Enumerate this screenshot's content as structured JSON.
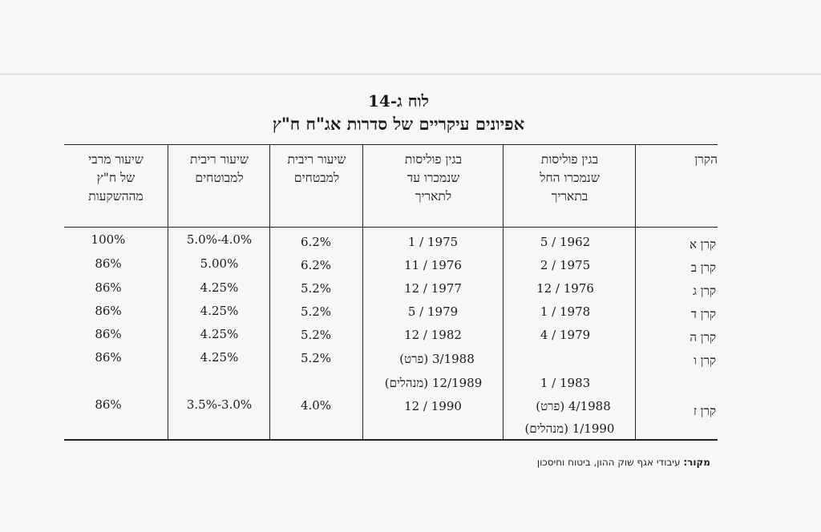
{
  "title": {
    "line1": "לוח ג-14",
    "line2": "אפיונים עיקריים של סדרות אג\"ח ח\"ץ"
  },
  "headers": {
    "fund": "הקרן",
    "from_date": [
      "בגין פוליסות",
      "שנמכרו החל",
      "בתאריך"
    ],
    "until_date": [
      "בגין פוליסות",
      "שנמכרו עד",
      "לתאריך"
    ],
    "rate1": [
      "שיעור ריבית",
      "למבטחים"
    ],
    "rate2": [
      "שיעור ריבית",
      "למבוטחים"
    ],
    "max_rate": [
      "שיעור מרבי",
      "של ח\"ץ",
      "מההשקעות"
    ]
  },
  "rows": [
    {
      "fund": "קרן א",
      "from": "5 / 1962",
      "until": "1 / 1975",
      "rate1": "6.2%",
      "rate2": "5.0%-4.0%",
      "max": "100%"
    },
    {
      "fund": "קרן ב",
      "from": "2 / 1975",
      "until": "11 / 1976",
      "rate1": "6.2%",
      "rate2": "5.00%",
      "max": "86%"
    },
    {
      "fund": "קרן ג",
      "from": "12 / 1976",
      "until": "12 / 1977",
      "rate1": "5.2%",
      "rate2": "4.25%",
      "max": "86%"
    },
    {
      "fund": "קרן ד",
      "from": "1 / 1978",
      "until": "5 / 1979",
      "rate1": "5.2%",
      "rate2": "4.25%",
      "max": "86%"
    },
    {
      "fund": "קרן ה",
      "from": "4 / 1979",
      "until": "12 / 1982",
      "rate1": "5.2%",
      "rate2": "4.25%",
      "max": "86%"
    },
    {
      "fund": "קרן ו",
      "from": "1 / 1983",
      "until_a": "3/1988 (פרט)",
      "until_b": "12/1989 (מנהלים)",
      "rate1": "5.2%",
      "rate2": "4.25%",
      "max": "86%"
    },
    {
      "fund": "קרן ז",
      "from_a": "4/1988 (פרט)",
      "from_b": "1/1990 (מנהלים)",
      "until": "12 / 1990",
      "rate1": "4.0%",
      "rate2": "3.5%-3.0%",
      "max": "86%"
    }
  ],
  "source": {
    "label": "מקור:",
    "text": " עיבודי אגף שוק ההון, ביטוח וחיסכון"
  }
}
